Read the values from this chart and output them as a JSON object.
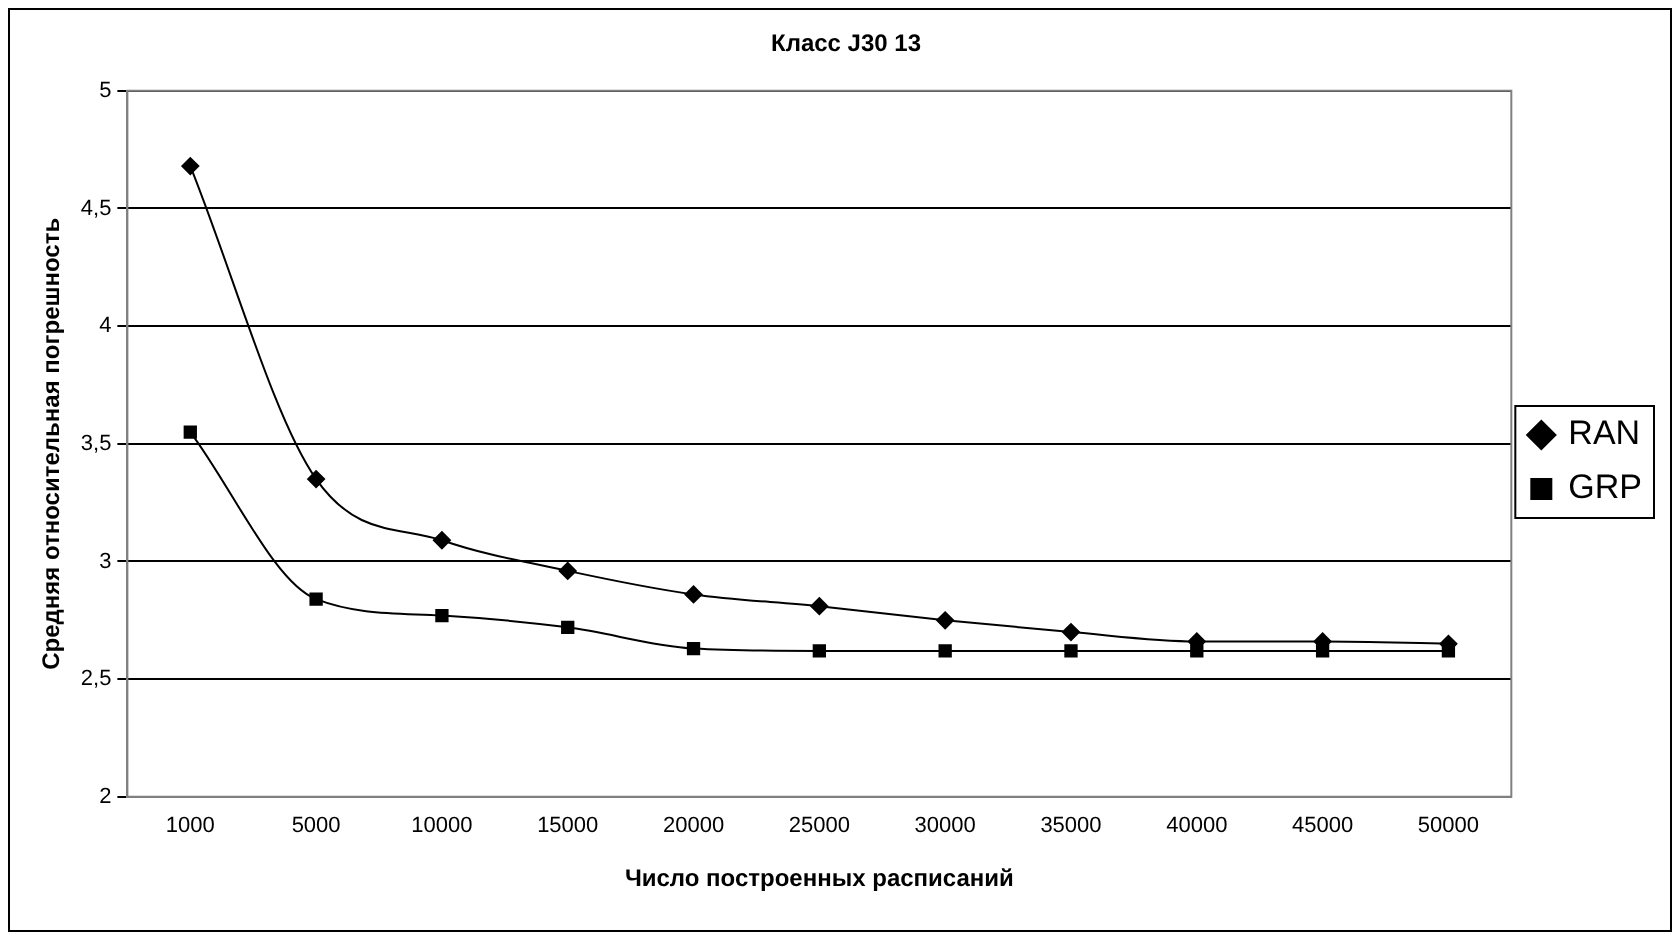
{
  "chart_data": {
    "type": "line",
    "title": "Класс J30 13",
    "xlabel": "Число построенных расписаний",
    "ylabel": "Средняя относительная погрешность",
    "categories": [
      "1000",
      "5000",
      "10000",
      "15000",
      "20000",
      "25000",
      "30000",
      "35000",
      "40000",
      "45000",
      "50000"
    ],
    "series": [
      {
        "name": "RAN",
        "color": "#000000",
        "marker": "diamond",
        "values": [
          4.68,
          3.35,
          3.09,
          2.96,
          2.86,
          2.81,
          2.75,
          2.7,
          2.66,
          2.66,
          2.65
        ]
      },
      {
        "name": "GRP",
        "color": "#000000",
        "marker": "square",
        "values": [
          3.55,
          2.84,
          2.77,
          2.72,
          2.63,
          2.62,
          2.62,
          2.62,
          2.62,
          2.62,
          2.62
        ]
      }
    ],
    "ylim": [
      2,
      5
    ],
    "yticks": [
      2,
      {
        "value": 2.5,
        "label": "2,5"
      },
      3,
      {
        "value": 3.5,
        "label": "3,5"
      },
      4,
      {
        "value": 4.5,
        "label": "4,5"
      },
      5
    ],
    "grid": "y",
    "legend": "right"
  }
}
